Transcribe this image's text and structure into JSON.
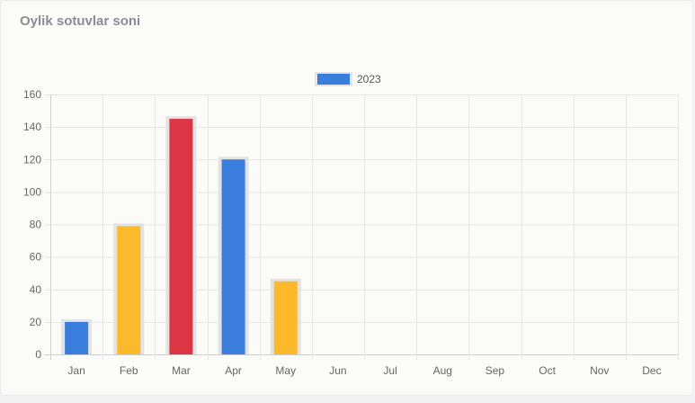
{
  "card": {
    "title": "Oylik sotuvlar soni"
  },
  "chart_data": {
    "type": "bar",
    "categories": [
      "Jan",
      "Feb",
      "Mar",
      "Apr",
      "May",
      "Jun",
      "Jul",
      "Aug",
      "Sep",
      "Oct",
      "Nov",
      "Dec"
    ],
    "series": [
      {
        "name": "2023",
        "values": [
          20,
          79,
          145,
          120,
          45,
          null,
          null,
          null,
          null,
          null,
          null,
          null
        ],
        "colors": [
          "#3b7ddd",
          "#fcb92c",
          "#dc3545",
          "#3b7ddd",
          "#fcb92c",
          null,
          null,
          null,
          null,
          null,
          null,
          null
        ]
      }
    ],
    "legend_color": "#3b7ddd",
    "bar_border_color": "#e3e3e3",
    "grid_color": "#e5e5e5",
    "ylim": [
      0,
      160
    ],
    "y_ticks": [
      0,
      20,
      40,
      60,
      80,
      100,
      120,
      140,
      160
    ],
    "grid": true,
    "legend_position": "top"
  }
}
